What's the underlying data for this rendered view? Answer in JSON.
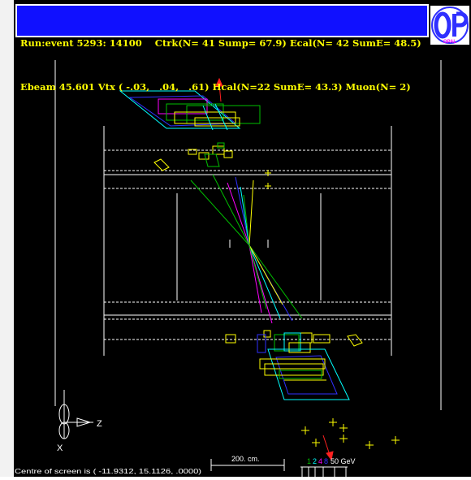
{
  "header": {
    "line1": "Run:event 5293: 14100    Ctrk(N= 41 Sump= 67.9) Ecal(N= 42 SumE= 48.5)",
    "line2": "Ebeam 45.601 Vtx ( -.03,   .04,   .61) Hcal(N=22 SumE= 43.3) Muon(N= 2)"
  },
  "logo": {
    "text": "OPAL"
  },
  "axes": {
    "x_label": "X",
    "z_label": "Z"
  },
  "footer": {
    "centre_text": "Centre of screen is ( -11.9312,  15.1126,    .0000)",
    "scale_text": "200. cm.",
    "energy_labels": [
      "1",
      "2",
      "4",
      "8",
      "50 GeV"
    ]
  },
  "colors": {
    "background": "#000000",
    "header_bg": "#1010ff",
    "header_text": "#ffff00",
    "track_green": "#00c000",
    "track_magenta": "#ff00ff",
    "track_blue": "#3030ff",
    "track_cyan": "#00ffff",
    "track_yellow": "#ffff00",
    "detector": "#ffffff",
    "arrow_red": "#ff2020"
  }
}
